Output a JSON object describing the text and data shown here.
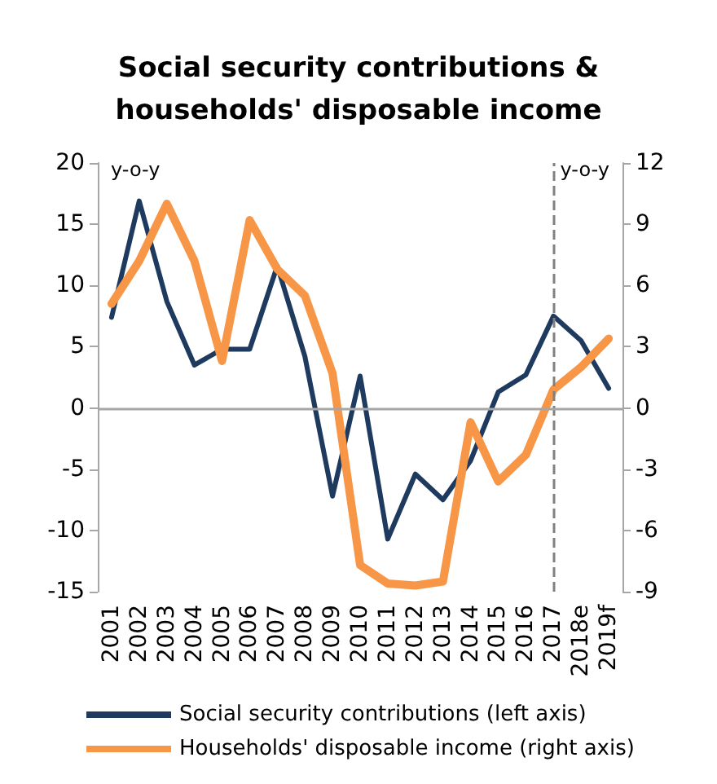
{
  "chart_data": {
    "type": "line",
    "title": "Social security contributions &\nhouseholds' disposable income",
    "categories": [
      "2001",
      "2002",
      "2003",
      "2004",
      "2005",
      "2006",
      "2007",
      "2008",
      "2009",
      "2010",
      "2011",
      "2012",
      "2013",
      "2014",
      "2015",
      "2016",
      "2017",
      "2018e",
      "2019f"
    ],
    "series": [
      {
        "name": "Social security contributions (left axis)",
        "color": "#1f3a5f",
        "values": [
          7.4,
          16.9,
          8.7,
          3.5,
          4.8,
          4.8,
          11.6,
          4.2,
          -7.2,
          2.6,
          -10.7,
          -5.4,
          -7.5,
          -4.3,
          1.3,
          2.7,
          7.5,
          5.5,
          1.6
        ]
      },
      {
        "name": "Households' disposable income (right axis)",
        "color": "#f79646",
        "axis": "y2",
        "values": [
          5.1,
          7.2,
          10.0,
          7.2,
          2.3,
          9.2,
          6.8,
          5.5,
          1.7,
          -7.7,
          -8.6,
          -8.7,
          -8.5,
          -0.7,
          -3.6,
          -2.3,
          0.9,
          2.0,
          3.4
        ]
      }
    ],
    "ylim": [
      -15,
      20
    ],
    "yticks": [
      -15,
      -10,
      -5,
      0,
      5,
      10,
      15,
      20
    ],
    "y2lim": [
      -9,
      12
    ],
    "y2ticks": [
      -9,
      -6,
      -3,
      0,
      3,
      6,
      9,
      12
    ],
    "ref_lines": [
      {
        "axis": "x",
        "value": "2017",
        "color": "#808080",
        "line_style": "dashed"
      },
      {
        "axis": "y",
        "value": 0,
        "color": "#a6a6a6",
        "line_style": "solid"
      }
    ],
    "annotations": [
      "y-o-y",
      "y-o-y"
    ],
    "grid": false,
    "legend": "bottom",
    "marker": "none",
    "line_style": "solid"
  }
}
